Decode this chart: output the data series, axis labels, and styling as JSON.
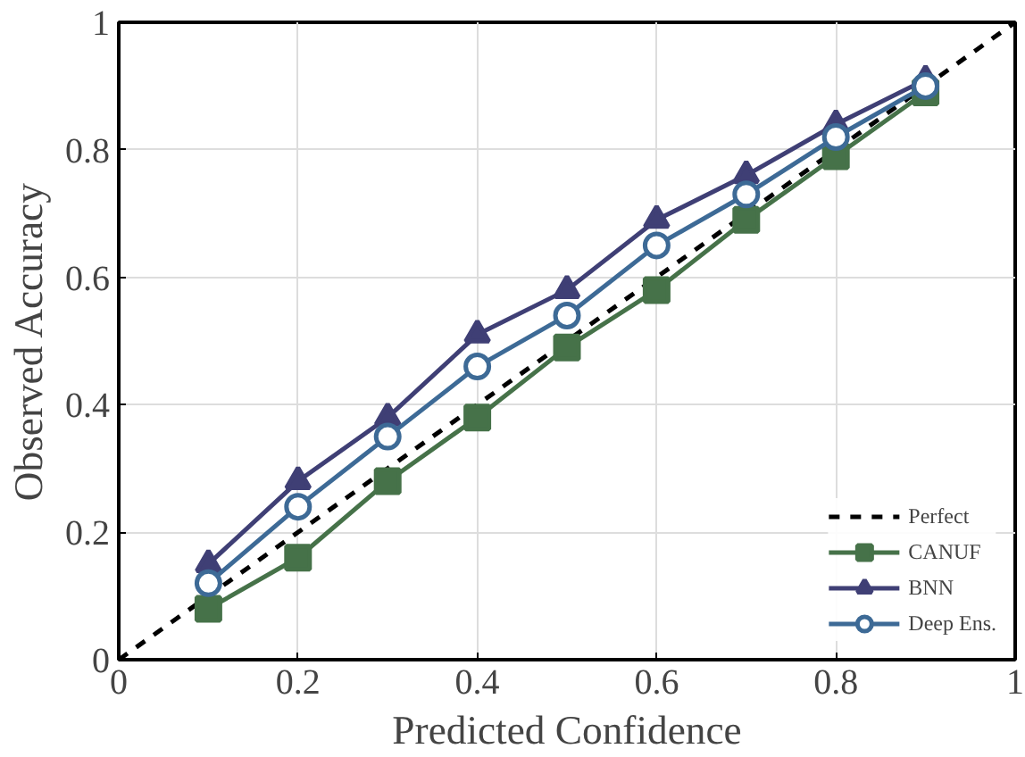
{
  "chart_data": {
    "type": "line",
    "xlabel": "Predicted Confidence",
    "ylabel": "Observed Accuracy",
    "xlim": [
      0,
      1
    ],
    "ylim": [
      0,
      1
    ],
    "xticks": [
      0,
      0.2,
      0.4,
      0.6,
      0.8,
      1
    ],
    "yticks": [
      0,
      0.2,
      0.4,
      0.6,
      0.8,
      1
    ],
    "grid": true,
    "legend": "bottom right",
    "x": [
      0.1,
      0.2,
      0.3,
      0.4,
      0.5,
      0.6,
      0.7,
      0.8,
      0.9
    ],
    "series": [
      {
        "name": "Perfect",
        "color": "#000000",
        "x": [
          0,
          1
        ],
        "values": [
          0,
          1
        ],
        "line_style": "dashed",
        "marker": "none"
      },
      {
        "name": "CANUF",
        "color": "#467249",
        "values": [
          0.08,
          0.16,
          0.28,
          0.38,
          0.49,
          0.58,
          0.69,
          0.79,
          0.89
        ],
        "marker": "square"
      },
      {
        "name": "BNN",
        "color": "#3f3f75",
        "values": [
          0.15,
          0.28,
          0.38,
          0.51,
          0.58,
          0.69,
          0.76,
          0.84,
          0.91
        ],
        "marker": "triangle"
      },
      {
        "name": "Deep Ens.",
        "color": "#3d6a96",
        "values": [
          0.12,
          0.24,
          0.35,
          0.46,
          0.54,
          0.65,
          0.73,
          0.82,
          0.9
        ],
        "marker": "circle"
      }
    ]
  }
}
